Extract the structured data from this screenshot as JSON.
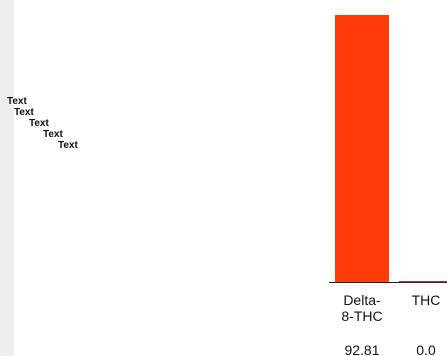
{
  "tree": {
    "items": [
      "Text",
      "Text",
      "Text",
      "Text",
      "Text"
    ]
  },
  "chart_data": {
    "type": "bar",
    "categories": [
      "Delta-8-THC",
      "THC"
    ],
    "category_labels": [
      "Delta-\n8-THC",
      "THC"
    ],
    "values": [
      92.81,
      0.0
    ],
    "value_labels": [
      "92.81",
      "0.0"
    ],
    "ylim": [
      0,
      92.81
    ],
    "colors": {
      "bar": "#ff3b0a",
      "zero_bar": "#c0392b",
      "baseline": "#222222"
    }
  }
}
